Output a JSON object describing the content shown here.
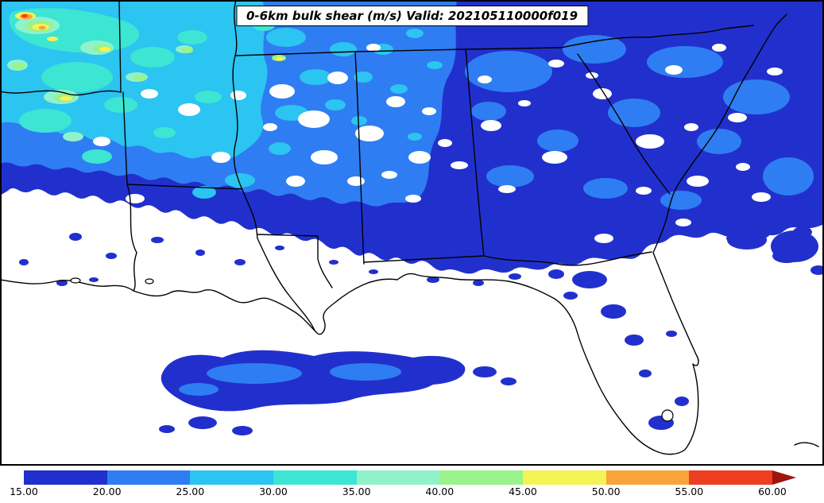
{
  "title": "0-6km bulk shear (m/s) Valid: 202105110000f019",
  "colorbar": {
    "unit": "m/s",
    "ticks": [
      "15.00",
      "20.00",
      "25.00",
      "30.00",
      "35.00",
      "40.00",
      "45.00",
      "50.00",
      "55.00",
      "60.00"
    ],
    "segments": [
      {
        "from": 15,
        "to": 20,
        "color": "#2130cc"
      },
      {
        "from": 20,
        "to": 25,
        "color": "#2f7df2"
      },
      {
        "from": 25,
        "to": 30,
        "color": "#2cc4f0"
      },
      {
        "from": 30,
        "to": 35,
        "color": "#3de5d3"
      },
      {
        "from": 35,
        "to": 40,
        "color": "#8ff2cb"
      },
      {
        "from": 40,
        "to": 45,
        "color": "#9af28a"
      },
      {
        "from": 45,
        "to": 50,
        "color": "#f4f356"
      },
      {
        "from": 50,
        "to": 55,
        "color": "#f9a33b"
      },
      {
        "from": 55,
        "to": 60,
        "color": "#ee3d20"
      },
      {
        "from": 60,
        "to": null,
        "color": "#9d1511",
        "overflow_arrow": true
      }
    ]
  },
  "chart_data": {
    "type": "heatmap",
    "title": "0-6km bulk shear (m/s) Valid: 202105110000f019",
    "variable": "0-6km bulk shear",
    "units": "m/s",
    "valid_time": "202105110000f019",
    "scale_ticks": [
      15,
      20,
      25,
      30,
      35,
      40,
      45,
      50,
      55,
      60
    ],
    "scale_colors": [
      "#2130cc",
      "#2f7df2",
      "#2cc4f0",
      "#3de5d3",
      "#8ff2cb",
      "#9af28a",
      "#f4f356",
      "#f9a33b",
      "#ee3d20",
      "#9d1511"
    ],
    "legend_position": "bottom",
    "region": "Southeastern United States (Texas/Louisiana Gulf Coast through Florida and the Carolinas)",
    "pattern_summary": [
      "Broad area of 15-25 m/s shear (blues) covering the northern half of the domain: Tennessee, Arkansas, northern Mississippi and Alabama, Georgia and the Carolinas",
      "25-35 m/s (cyan/turquoise) over the northwest quadrant near Oklahoma/Arkansas/north Texas",
      "Small maxima of 35-60 m/s (green/yellow/orange/red) in the extreme northwest corner",
      "Values below 15 m/s (white) along the central Gulf Coast, Louisiana and most of Florida",
      "Isolated elongated band of 15-25 m/s over the Gulf of Mexico south of Louisiana",
      "Scattered small 15-20 m/s patches over the Florida peninsula"
    ]
  }
}
